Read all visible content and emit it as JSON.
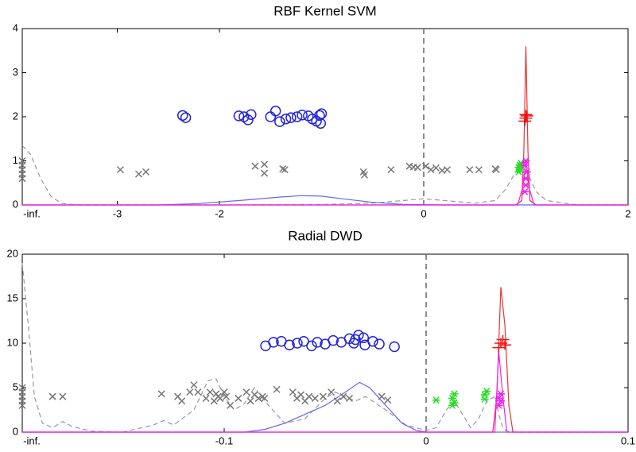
{
  "chart_data": [
    {
      "type": "scatter",
      "title": "RBF Kernel SVM",
      "xlim": [
        -3.93,
        2
      ],
      "xticks": [
        {
          "value": -3.93,
          "label": "-inf."
        },
        -3,
        -2,
        0,
        2
      ],
      "ylim": [
        0,
        4
      ],
      "yticks": [
        0,
        1,
        2,
        3,
        4
      ],
      "series": [
        {
          "marker": "o",
          "color": "#2222dd",
          "x": [
            -2.36,
            -2.33,
            -1.81,
            -1.76,
            -1.72,
            -1.69,
            -1.5,
            -1.45,
            -1.41,
            -1.35,
            -1.3,
            -1.24,
            -1.19,
            -1.13,
            -1.09,
            -1.05,
            -1.02,
            -1.0,
            -1.01
          ],
          "y": [
            2.03,
            1.98,
            2.02,
            2.0,
            1.93,
            2.05,
            2.0,
            2.13,
            1.89,
            1.95,
            1.98,
            2.0,
            2.04,
            2.02,
            1.95,
            1.9,
            2.03,
            2.07,
            1.85
          ]
        },
        {
          "marker": "x",
          "color": "#777777",
          "x": [
            -2.97,
            -2.79,
            -2.72,
            -1.65,
            -1.56,
            -1.56,
            -1.38,
            -1.36,
            -0.59,
            -0.58,
            -0.32,
            -0.14,
            -0.1,
            -0.06,
            0.02,
            0.07,
            0.12,
            0.18,
            0.23,
            0.45,
            0.54,
            0.7,
            0.71
          ],
          "y": [
            0.8,
            0.7,
            0.75,
            0.88,
            0.92,
            0.72,
            0.82,
            0.8,
            0.75,
            0.68,
            0.8,
            0.88,
            0.86,
            0.85,
            0.88,
            0.8,
            0.84,
            0.78,
            0.8,
            0.8,
            0.8,
            0.82,
            0.8
          ]
        },
        {
          "marker": "x",
          "color": "#777777",
          "x": [
            -3.93,
            -3.93,
            -3.93,
            -3.93,
            -3.93
          ],
          "y": [
            0.6,
            0.7,
            0.8,
            0.9,
            1.0
          ]
        },
        {
          "marker": "*",
          "color": "#22dd22",
          "x": [
            0.93,
            0.93,
            0.94,
            0.94,
            0.95
          ],
          "y": [
            0.75,
            0.85,
            0.9,
            0.8,
            0.95
          ]
        },
        {
          "marker": "*",
          "color": "#ee22ee",
          "x": [
            0.99,
            1.0,
            1.0,
            1.01,
            0.99,
            1.0
          ],
          "y": [
            0.3,
            0.45,
            0.6,
            0.75,
            0.9,
            1.0
          ]
        },
        {
          "marker": "+",
          "color": "#ee1111",
          "x": [
            0.99,
            1.0,
            1.01,
            1.0
          ],
          "y": [
            1.9,
            1.97,
            2.02,
            2.05
          ]
        },
        {
          "style": "dashed",
          "color": "#999999",
          "x": [
            -3.93,
            -3.85,
            -3.75,
            -3.65,
            -3.55,
            -3.4,
            -2,
            -1,
            -0.5,
            -0.2,
            0,
            0.2,
            0.5,
            0.7,
            0.8,
            0.9,
            0.95,
            1.0,
            1.05,
            1.1,
            1.2,
            1.5,
            2
          ],
          "y": [
            1.35,
            1.15,
            0.6,
            0.2,
            0.04,
            0,
            0,
            0.01,
            0.04,
            0.1,
            0.14,
            0.1,
            0.04,
            0.1,
            0.35,
            0.75,
            0.9,
            0.8,
            0.55,
            0.3,
            0.1,
            0,
            0
          ]
        },
        {
          "style": "solid",
          "color": "#6666ee",
          "x": [
            -3.93,
            -2.6,
            -2.2,
            -1.8,
            -1.4,
            -1.2,
            -1.0,
            -0.8,
            -0.5,
            -0.2,
            0.2,
            2
          ],
          "y": [
            0,
            0,
            0.03,
            0.1,
            0.18,
            0.21,
            0.2,
            0.14,
            0.06,
            0.01,
            0,
            0
          ]
        },
        {
          "style": "solid",
          "color": "#ee3333",
          "x": [
            -3.93,
            0.9,
            0.96,
            0.98,
            1.0,
            1.02,
            1.04,
            1.1,
            2
          ],
          "y": [
            0,
            0,
            0.1,
            1.2,
            3.6,
            1.2,
            0.1,
            0,
            0
          ]
        },
        {
          "style": "solid",
          "color": "#ee22ee",
          "x": [
            -3.93,
            0.92,
            0.97,
            1.0,
            1.03,
            1.08,
            2
          ],
          "y": [
            0,
            0,
            0.4,
            1.0,
            0.4,
            0,
            0
          ]
        }
      ]
    },
    {
      "type": "scatter",
      "title": "Radial DWD",
      "xlim": [
        -0.2,
        0.1
      ],
      "xticks": [
        {
          "value": -0.2,
          "label": "-inf."
        },
        -0.1,
        0,
        0.1
      ],
      "ylim": [
        0,
        20
      ],
      "yticks": [
        0,
        5,
        10,
        15,
        20
      ],
      "series": [
        {
          "marker": "o",
          "color": "#2222dd",
          "x": [
            -0.0795,
            -0.0756,
            -0.0717,
            -0.0677,
            -0.0638,
            -0.0606,
            -0.0567,
            -0.0539,
            -0.05,
            -0.046,
            -0.042,
            -0.038,
            -0.0358,
            -0.0335,
            -0.0303,
            -0.0264,
            -0.0232,
            -0.0157,
            -0.035,
            -0.031
          ],
          "y": [
            9.7,
            10.1,
            10.2,
            9.8,
            10.0,
            10.2,
            9.7,
            10.1,
            9.9,
            10.3,
            10.1,
            10.5,
            10.0,
            10.9,
            9.8,
            10.2,
            9.9,
            9.6,
            10.4,
            10.6
          ]
        },
        {
          "marker": "x",
          "color": "#777777",
          "x": [
            -0.185,
            -0.18,
            -0.131,
            -0.123,
            -0.121,
            -0.117,
            -0.115,
            -0.113,
            -0.109,
            -0.107,
            -0.105,
            -0.104,
            -0.103,
            -0.102,
            -0.1,
            -0.099,
            -0.097,
            -0.093,
            -0.089,
            -0.087,
            -0.085,
            -0.083,
            -0.081,
            -0.08,
            -0.074,
            -0.066,
            -0.064,
            -0.062,
            -0.06,
            -0.058,
            -0.055,
            -0.051,
            -0.047,
            -0.044,
            -0.041,
            -0.038,
            -0.022,
            -0.019
          ],
          "y": [
            4.0,
            4.0,
            4.3,
            4.0,
            3.5,
            4.5,
            5.3,
            4.5,
            3.8,
            4.5,
            3.5,
            4.3,
            4.0,
            3.8,
            4.5,
            4.0,
            3.0,
            3.8,
            4.5,
            3.5,
            4.2,
            3.8,
            4.0,
            3.8,
            4.8,
            4.5,
            3.8,
            4.2,
            3.5,
            4.0,
            3.8,
            4.0,
            4.5,
            3.5,
            4.0,
            3.8,
            4.0,
            3.6
          ]
        },
        {
          "marker": "x",
          "color": "#777777",
          "x": [
            -0.2,
            -0.2,
            -0.2,
            -0.2,
            -0.2
          ],
          "y": [
            3.0,
            3.5,
            4.0,
            4.5,
            5.0
          ]
        },
        {
          "marker": "*",
          "color": "#22dd22",
          "x": [
            0.005,
            0.013,
            0.013,
            0.014,
            0.014,
            0.029,
            0.029,
            0.03
          ],
          "y": [
            3.6,
            3.0,
            3.8,
            4.3,
            3.3,
            3.7,
            4.2,
            4.6
          ]
        },
        {
          "marker": "*",
          "color": "#ee22ee",
          "x": [
            0.036,
            0.037,
            0.037,
            0.036
          ],
          "y": [
            3.0,
            3.5,
            4.3,
            3.8
          ]
        },
        {
          "marker": "+",
          "color": "#ee1111",
          "x": [
            0.036,
            0.037,
            0.038,
            0.039
          ],
          "y": [
            9.5,
            10.0,
            10.4,
            9.8
          ]
        },
        {
          "style": "dashed",
          "color": "#999999",
          "x": [
            -0.2,
            -0.197,
            -0.194,
            -0.19,
            -0.185,
            -0.18,
            -0.175,
            -0.165,
            -0.15,
            -0.135,
            -0.13,
            -0.125,
            -0.115,
            -0.108,
            -0.104,
            -0.1,
            -0.095,
            -0.09,
            -0.085,
            -0.078,
            -0.07,
            -0.06,
            -0.05,
            -0.045,
            -0.04,
            -0.035,
            -0.03,
            -0.02,
            -0.01,
            0,
            0.005,
            0.01,
            0.014,
            0.018,
            0.022,
            0.026,
            0.03,
            0.034,
            0.036,
            0.038,
            0.04,
            0.045,
            0.1
          ],
          "y": [
            19,
            12,
            4,
            1,
            0.5,
            1.2,
            0.6,
            0.1,
            0,
            0.8,
            1.3,
            0.8,
            2.5,
            5.8,
            6,
            4,
            2.5,
            3.2,
            5,
            3,
            1,
            1.5,
            3.8,
            4.5,
            4,
            3.5,
            4,
            2.5,
            0.8,
            0.2,
            0.5,
            2.5,
            3.5,
            2,
            0.5,
            1.5,
            3.5,
            4,
            2,
            0.5,
            0.1,
            0,
            0
          ]
        },
        {
          "style": "solid",
          "color": "#6666ee",
          "x": [
            -0.2,
            -0.09,
            -0.08,
            -0.07,
            -0.06,
            -0.05,
            -0.04,
            -0.033,
            -0.028,
            -0.02,
            -0.012,
            -0.005,
            0,
            0.1
          ],
          "y": [
            0,
            0,
            0.3,
            1,
            2,
            3,
            4.5,
            5.6,
            5,
            3,
            1,
            0.2,
            0,
            0
          ]
        },
        {
          "style": "solid",
          "color": "#ee3333",
          "x": [
            -0.2,
            0.033,
            0.035,
            0.037,
            0.039,
            0.041,
            0.043,
            0.1
          ],
          "y": [
            0,
            0,
            4,
            16.3,
            12,
            3,
            0,
            0
          ]
        },
        {
          "style": "solid",
          "color": "#ee22ee",
          "x": [
            -0.2,
            0.034,
            0.036,
            0.038,
            0.04,
            0.1
          ],
          "y": [
            0,
            0,
            9,
            4,
            0,
            0
          ]
        }
      ]
    }
  ]
}
